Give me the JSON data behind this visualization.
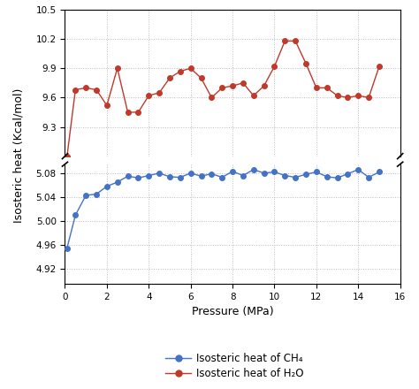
{
  "xlabel": "Pressure (MPa)",
  "ylabel": "Isosteric heat (Kcal/mol)",
  "ch4_x": [
    0.1,
    0.5,
    1.0,
    1.5,
    2.0,
    2.5,
    3.0,
    3.5,
    4.0,
    4.5,
    5.0,
    5.5,
    6.0,
    6.5,
    7.0,
    7.5,
    8.0,
    8.5,
    9.0,
    9.5,
    10.0,
    10.5,
    11.0,
    11.5,
    12.0,
    12.5,
    13.0,
    13.5,
    14.0,
    14.5,
    15.0
  ],
  "ch4_y": [
    4.955,
    5.01,
    5.043,
    5.045,
    5.058,
    5.065,
    5.075,
    5.072,
    5.076,
    5.08,
    5.074,
    5.073,
    5.08,
    5.075,
    5.079,
    5.073,
    5.083,
    5.076,
    5.086,
    5.08,
    5.082,
    5.076,
    5.073,
    5.078,
    5.082,
    5.074,
    5.072,
    5.079,
    5.086,
    5.073,
    5.082
  ],
  "h2o_x": [
    0.1,
    0.5,
    1.0,
    1.5,
    2.0,
    2.5,
    3.0,
    3.5,
    4.0,
    4.5,
    5.0,
    5.5,
    6.0,
    6.5,
    7.0,
    7.5,
    8.0,
    8.5,
    9.0,
    9.5,
    10.0,
    10.5,
    11.0,
    11.5,
    12.0,
    12.5,
    13.0,
    13.5,
    14.0,
    14.5,
    15.0
  ],
  "h2o_y": [
    9.0,
    9.68,
    9.7,
    9.68,
    9.52,
    9.9,
    9.45,
    9.45,
    9.62,
    9.65,
    9.8,
    9.87,
    9.9,
    9.8,
    9.6,
    9.7,
    9.72,
    9.75,
    9.62,
    9.72,
    9.92,
    10.18,
    10.18,
    9.95,
    9.7,
    9.7,
    9.62,
    9.6,
    9.62,
    9.6,
    9.92
  ],
  "ch4_color": "#4472c4",
  "h2o_color": "#c0392b",
  "xlim": [
    0,
    16
  ],
  "ylim_lower": [
    4.895,
    5.095
  ],
  "ylim_upper": [
    9.0,
    10.5
  ],
  "lower_yticks": [
    4.92,
    4.96,
    5.0,
    5.04,
    5.08
  ],
  "upper_yticks": [
    9.3,
    9.6,
    9.9,
    10.2,
    10.5
  ],
  "xticks": [
    0,
    2,
    4,
    6,
    8,
    10,
    12,
    14,
    16
  ],
  "grid_color": "#bbbbbb",
  "background_color": "#ffffff",
  "legend_ch4": "Isosteric heat of CH₄",
  "legend_h2o": "Isosteric heat of H₂O"
}
